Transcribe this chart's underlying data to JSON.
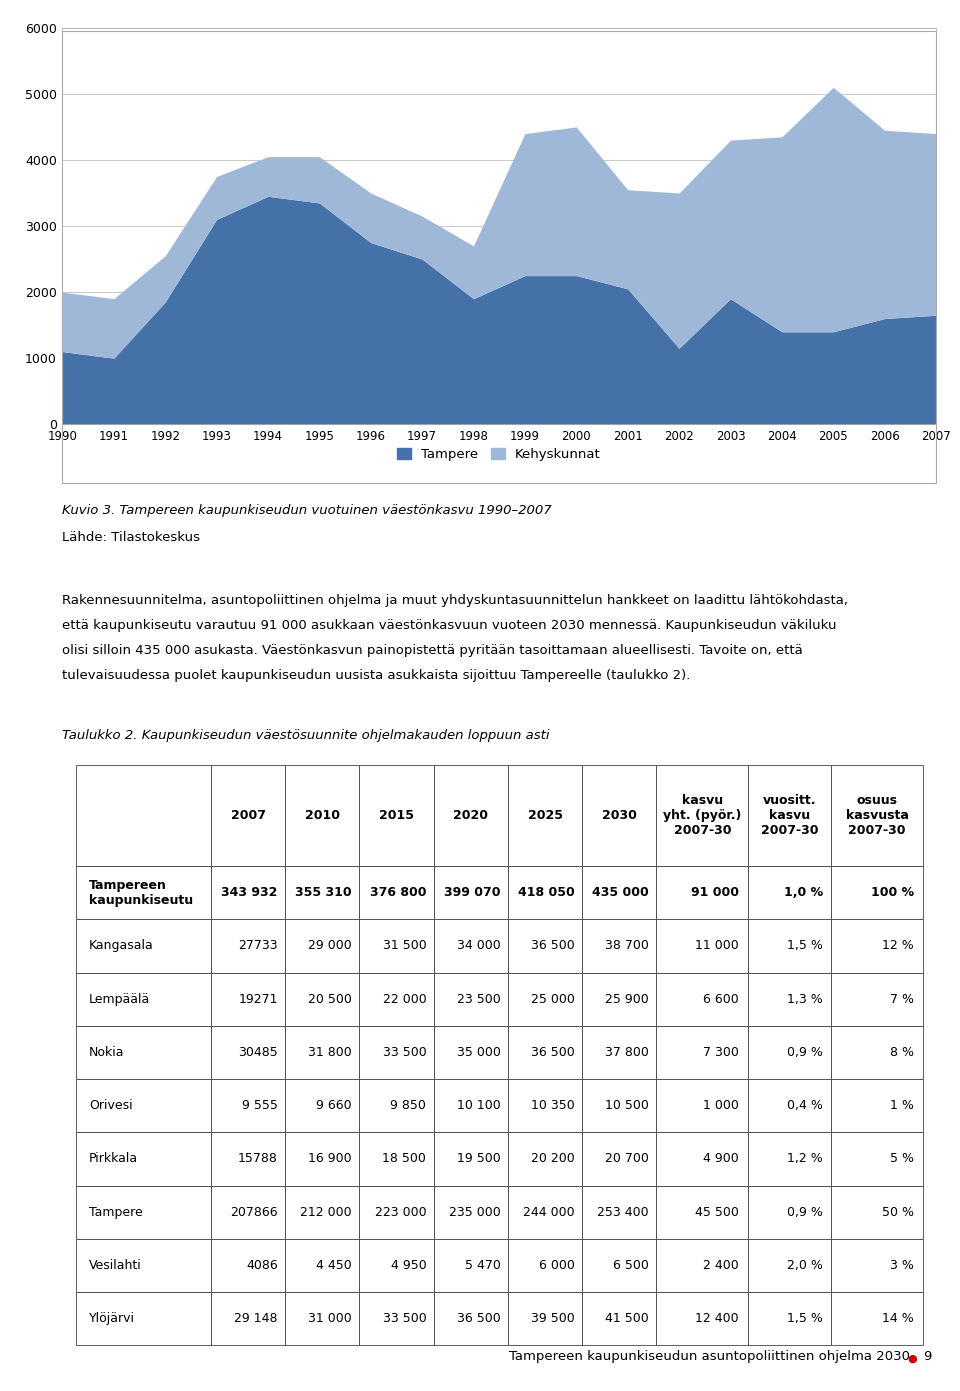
{
  "years": [
    1990,
    1991,
    1992,
    1993,
    1994,
    1995,
    1996,
    1997,
    1998,
    1999,
    2000,
    2001,
    2002,
    2003,
    2004,
    2005,
    2006,
    2007
  ],
  "tampere": [
    1100,
    1000,
    1850,
    3100,
    3450,
    3350,
    2750,
    2500,
    1900,
    2250,
    2250,
    2050,
    1150,
    1900,
    1400,
    1400,
    1600,
    1650
  ],
  "kehyskunnat": [
    900,
    900,
    700,
    650,
    600,
    700,
    750,
    650,
    800,
    2150,
    2250,
    1500,
    2350,
    2400,
    2950,
    3700,
    2850,
    2750
  ],
  "tampere_color": "#4472a8",
  "kehyskunnat_color": "#a0b8d8",
  "legend_tampere": "Tampere",
  "legend_kehys": "Kehyskunnat",
  "ylim": [
    0,
    6000
  ],
  "yticks": [
    0,
    1000,
    2000,
    3000,
    4000,
    5000,
    6000
  ],
  "chart_title": "Kuvio 3. Tampereen kaupunkiseudun vuotuinen väestönkasvu 1990–2007",
  "lahde": "Lähde: Tilastokeskus",
  "body_text_lines": [
    "Rakennesuunnitelma, asuntopoliittinen ohjelma ja muut yhdyskuntasuunnittelun hankkeet on laadittu lähtökohdasta,",
    "että kaupunkiseutu varautuu 91 000 asukkaan väestönkasvuun vuoteen 2030 mennessä. Kaupunkiseudun väkiluku",
    "olisi silloin 435 000 asukasta. Väestönkasvun painopistettä pyritään tasoittamaan alueellisesti. Tavoite on, että",
    "tulevaisuudessa puolet kaupunkiseudun uusista asukkaista sijoittuu Tampereelle (taulukko 2)."
  ],
  "table_title": "Taulukko 2. Kaupunkiseudun väestösuunnite ohjelmakauden loppuun asti",
  "col_headers": [
    "",
    "2007",
    "2010",
    "2015",
    "2020",
    "2025",
    "2030",
    "kasvu\nyht. (pyör.)\n2007-30",
    "vuositt.\nkasvu\n2007-30",
    "osuus\nkasvusta\n2007-30"
  ],
  "table_rows": [
    [
      "Tampereen\nkaupunkiseutu",
      "343 932",
      "355 310",
      "376 800",
      "399 070",
      "418 050",
      "435 000",
      "91 000",
      "1,0 %",
      "100 %"
    ],
    [
      "Kangasala",
      "27733",
      "29 000",
      "31 500",
      "34 000",
      "36 500",
      "38 700",
      "11 000",
      "1,5 %",
      "12 %"
    ],
    [
      "Lempäälä",
      "19271",
      "20 500",
      "22 000",
      "23 500",
      "25 000",
      "25 900",
      "6 600",
      "1,3 %",
      "7 %"
    ],
    [
      "Nokia",
      "30485",
      "31 800",
      "33 500",
      "35 000",
      "36 500",
      "37 800",
      "7 300",
      "0,9 %",
      "8 %"
    ],
    [
      "Orivesi",
      "9 555",
      "9 660",
      "9 850",
      "10 100",
      "10 350",
      "10 500",
      "1 000",
      "0,4 %",
      "1 %"
    ],
    [
      "Pirkkala",
      "15788",
      "16 900",
      "18 500",
      "19 500",
      "20 200",
      "20 700",
      "4 900",
      "1,2 %",
      "5 %"
    ],
    [
      "Tampere",
      "207866",
      "212 000",
      "223 000",
      "235 000",
      "244 000",
      "253 400",
      "45 500",
      "0,9 %",
      "50 %"
    ],
    [
      "Vesilahti",
      "4086",
      "4 450",
      "4 950",
      "5 470",
      "6 000",
      "6 500",
      "2 400",
      "2,0 %",
      "3 %"
    ],
    [
      "Ylöjärvi",
      "29 148",
      "31 000",
      "33 500",
      "36 500",
      "39 500",
      "41 500",
      "12 400",
      "1,5 %",
      "14 %"
    ]
  ],
  "footer_text": "Tampereen kaupunkiseudun asuntopoliittinen ohjelma 2030",
  "footer_page": "9",
  "footer_dot_color": "#cc0000"
}
